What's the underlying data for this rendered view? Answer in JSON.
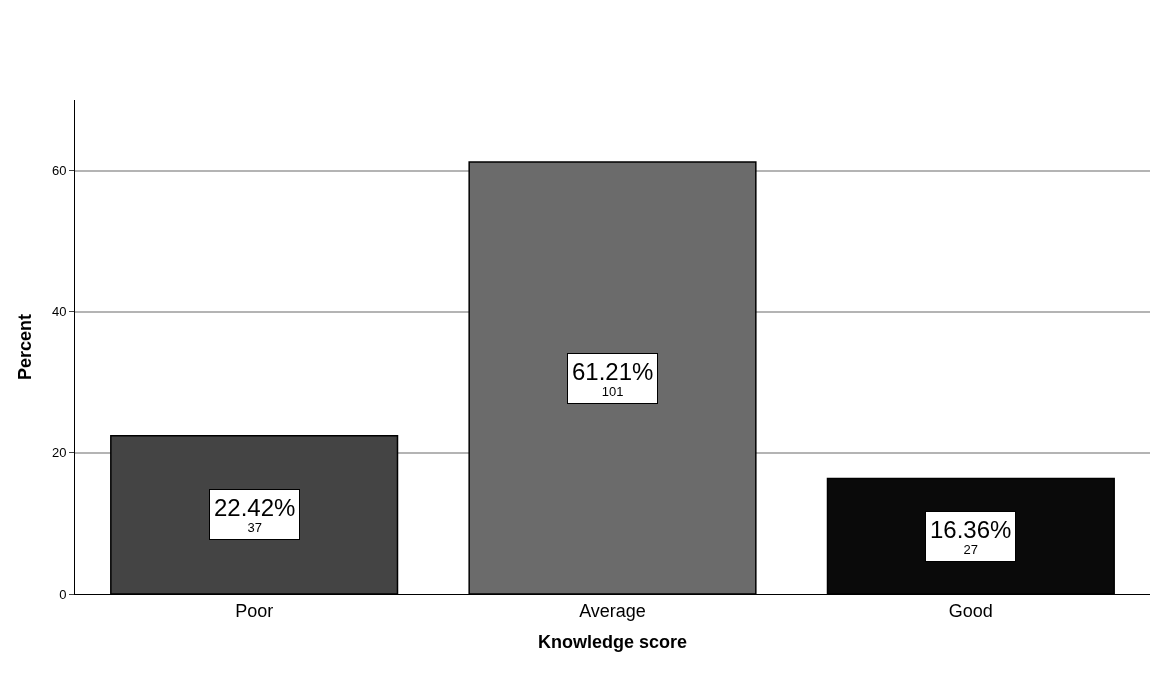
{
  "chart_data": {
    "type": "bar",
    "xlabel": "Knowledge score",
    "ylabel": "Percent",
    "categories": [
      "Poor",
      "Average",
      "Good"
    ],
    "values": [
      22.42,
      61.21,
      16.36
    ],
    "colors": [
      "#444444",
      "#6b6b6b",
      "#0a0a0a"
    ],
    "value_labels": [
      "22.42%\n37",
      "61.21%\n101",
      "16.36%\n27"
    ],
    "ylim": [
      0,
      70
    ],
    "yticks": [
      0,
      20,
      40,
      60
    ],
    "grid": "y"
  }
}
